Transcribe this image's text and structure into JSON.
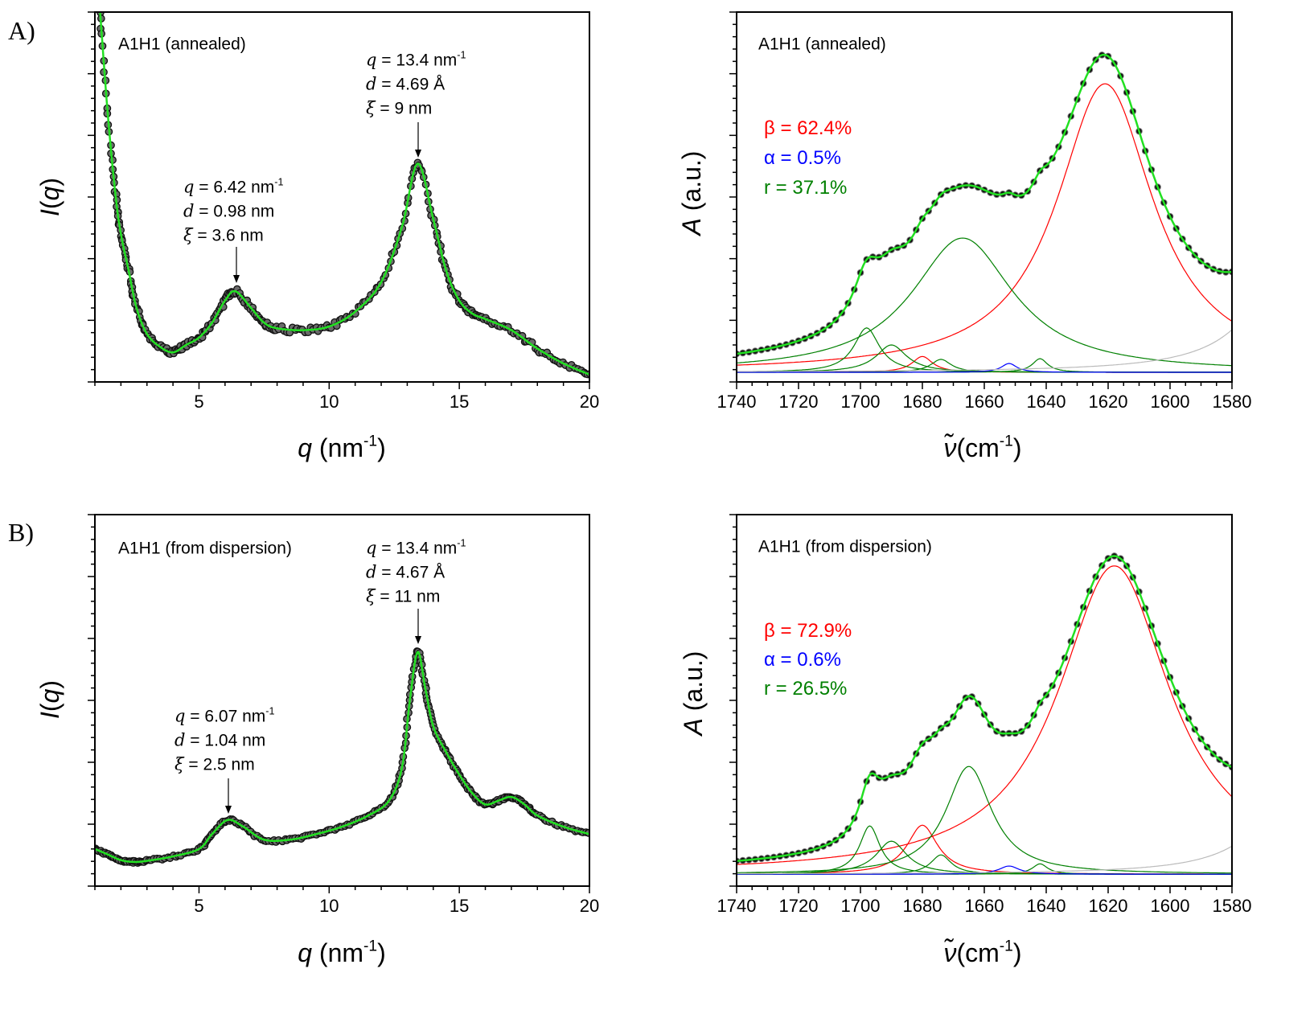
{
  "panels": [
    {
      "label": "A)"
    },
    {
      "label": "B)"
    }
  ],
  "chart_data": [
    {
      "type": "scatter",
      "label": "A1H1 (annealed)",
      "xlabel": {
        "var": "q",
        "text": " (nm",
        "sup": "-1",
        "end": ")"
      },
      "ylabel": {
        "var": "I",
        "text": "(",
        "var2": "q",
        "end": ")"
      },
      "xlim": [
        1,
        20
      ],
      "ylim": [
        0,
        1
      ],
      "xticks": [
        "5",
        "10",
        "15",
        "20"
      ],
      "xtick_values": [
        5,
        10,
        15,
        20
      ],
      "yticks_labeled": false,
      "colors": {
        "data": "#3a3a3a",
        "fit": "#22e022"
      },
      "series": {
        "x": [
          1.2,
          1.5,
          1.8,
          2.0,
          2.3,
          2.6,
          3.0,
          3.5,
          4.0,
          4.5,
          5.0,
          5.5,
          6.0,
          6.4,
          7.0,
          7.5,
          8.0,
          9.0,
          10.0,
          11.0,
          12.0,
          12.8,
          13.4,
          14.0,
          14.5,
          15.0,
          15.5,
          16.0,
          17.0,
          18.0,
          19.0,
          20.0
        ],
        "y": [
          1.0,
          0.72,
          0.5,
          0.4,
          0.3,
          0.2,
          0.13,
          0.095,
          0.08,
          0.1,
          0.12,
          0.16,
          0.22,
          0.245,
          0.2,
          0.16,
          0.145,
          0.14,
          0.15,
          0.19,
          0.27,
          0.42,
          0.59,
          0.44,
          0.3,
          0.22,
          0.185,
          0.17,
          0.14,
          0.09,
          0.05,
          0.02
        ]
      },
      "annotations": [
        {
          "at_q": 6.42,
          "lines": [
            {
              "var": "q",
              "text": " = 6.42 nm",
              "sup": "-1"
            },
            {
              "var": "d",
              "text": " = 0.98 nm",
              "sup": ""
            },
            {
              "var": "ξ",
              "text": " = 3.6 nm",
              "sup": ""
            }
          ]
        },
        {
          "at_q": 13.4,
          "lines": [
            {
              "var": "q",
              "text": " = 13.4 nm",
              "sup": "-1"
            },
            {
              "var": "d",
              "text": " = 4.69 Å",
              "sup": ""
            },
            {
              "var": "ξ",
              "text": " = 9 nm",
              "sup": ""
            }
          ]
        }
      ]
    },
    {
      "type": "line",
      "label": "A1H1 (annealed)",
      "xlabel": {
        "var": "ν̃",
        "text": "(cm",
        "sup": "-1",
        "end": ")"
      },
      "ylabel": {
        "var": "A",
        "text": " (a.u.)"
      },
      "xlim": [
        1740,
        1580
      ],
      "ylim": [
        0,
        1
      ],
      "xticks": [
        "1740",
        "1720",
        "1700",
        "1680",
        "1660",
        "1640",
        "1620",
        "1600",
        "1580"
      ],
      "xtick_values": [
        1740,
        1720,
        1700,
        1680,
        1660,
        1640,
        1620,
        1600,
        1580
      ],
      "yticks_labeled": false,
      "baseline": 0.026,
      "fractions": [
        {
          "text": "β = 62.4%",
          "color": "#ff0000"
        },
        {
          "text": "α =  0.5%",
          "color": "#0000ff"
        },
        {
          "text": "r = 37.1%",
          "color": "#008000"
        }
      ],
      "colors": {
        "data": "#111111",
        "fit": "#22e022"
      },
      "components": [
        {
          "center": 1621,
          "height": 0.78,
          "hwhm": 19,
          "color": "#ff0000"
        },
        {
          "center": 1680,
          "height": 0.043,
          "hwhm": 4,
          "color": "#ff0000"
        },
        {
          "center": 1667,
          "height": 0.363,
          "hwhm": 20,
          "color": "#008000"
        },
        {
          "center": 1698,
          "height": 0.12,
          "hwhm": 5,
          "color": "#008000"
        },
        {
          "center": 1690,
          "height": 0.074,
          "hwhm": 6,
          "color": "#008000"
        },
        {
          "center": 1674,
          "height": 0.035,
          "hwhm": 4,
          "color": "#008000"
        },
        {
          "center": 1642,
          "height": 0.037,
          "hwhm": 3,
          "color": "#008000"
        },
        {
          "center": 1652,
          "height": 0.024,
          "hwhm": 3,
          "color": "#0000ff"
        },
        {
          "center": 1560,
          "height": 0.32,
          "hwhm": 15,
          "color": "#bbbbbb"
        }
      ]
    },
    {
      "type": "scatter",
      "label": "A1H1 (from dispersion)",
      "xlabel": {
        "var": "q",
        "text": " (nm",
        "sup": "-1",
        "end": ")"
      },
      "ylabel": {
        "var": "I",
        "text": "(",
        "var2": "q",
        "end": ")"
      },
      "xlim": [
        1,
        20
      ],
      "ylim": [
        0,
        1
      ],
      "xticks": [
        "5",
        "10",
        "15",
        "20"
      ],
      "xtick_values": [
        5,
        10,
        15,
        20
      ],
      "yticks_labeled": false,
      "colors": {
        "data": "#3a3a3a",
        "fit": "#22e022"
      },
      "series": {
        "x": [
          1.0,
          1.5,
          2.0,
          2.5,
          3.0,
          4.0,
          5.0,
          5.5,
          6.1,
          6.7,
          7.5,
          8.5,
          9.5,
          10.5,
          11.5,
          12.3,
          12.8,
          13.1,
          13.4,
          13.7,
          14.0,
          14.5,
          15.0,
          15.5,
          16.0,
          16.5,
          17.0,
          17.5,
          18.0,
          19.0,
          20.0
        ],
        "y": [
          0.1,
          0.085,
          0.07,
          0.065,
          0.068,
          0.08,
          0.1,
          0.14,
          0.178,
          0.16,
          0.125,
          0.125,
          0.14,
          0.16,
          0.19,
          0.23,
          0.32,
          0.5,
          0.63,
          0.53,
          0.43,
          0.36,
          0.3,
          0.25,
          0.22,
          0.23,
          0.24,
          0.22,
          0.19,
          0.16,
          0.14
        ]
      },
      "annotations": [
        {
          "at_q": 6.07,
          "lines": [
            {
              "var": "q",
              "text": " = 6.07 nm",
              "sup": "-1"
            },
            {
              "var": "d",
              "text": " = 1.04 nm",
              "sup": ""
            },
            {
              "var": "ξ",
              "text": " = 2.5 nm",
              "sup": ""
            }
          ]
        },
        {
          "at_q": 13.4,
          "lines": [
            {
              "var": "q",
              "text": " = 13.4 nm",
              "sup": "-1"
            },
            {
              "var": "d",
              "text": " = 4.67 Å",
              "sup": ""
            },
            {
              "var": "ξ",
              "text": " = 11 nm",
              "sup": ""
            }
          ]
        }
      ]
    },
    {
      "type": "line",
      "label": "A1H1 (from dispersion)",
      "xlabel": {
        "var": "ν̃",
        "text": "(cm",
        "sup": "-1",
        "end": ")"
      },
      "ylabel": {
        "var": "A",
        "text": " (a.u.)"
      },
      "xlim": [
        1740,
        1580
      ],
      "ylim": [
        0,
        1
      ],
      "xticks": [
        "1740",
        "1720",
        "1700",
        "1680",
        "1660",
        "1640",
        "1620",
        "1600",
        "1580"
      ],
      "xtick_values": [
        1740,
        1720,
        1700,
        1680,
        1660,
        1640,
        1620,
        1600,
        1580
      ],
      "yticks_labeled": false,
      "baseline": 0.032,
      "fractions": [
        {
          "text": "β = 72.9%",
          "color": "#ff0000"
        },
        {
          "text": "α =  0.6%",
          "color": "#0000ff"
        },
        {
          "text": "r = 26.5%",
          "color": "#008000"
        }
      ],
      "colors": {
        "data": "#111111",
        "fit": "#22e022"
      },
      "components": [
        {
          "center": 1618,
          "height": 0.83,
          "hwhm": 22,
          "color": "#ff0000"
        },
        {
          "center": 1680,
          "height": 0.132,
          "hwhm": 6,
          "color": "#ff0000"
        },
        {
          "center": 1665,
          "height": 0.29,
          "hwhm": 9,
          "color": "#008000"
        },
        {
          "center": 1697,
          "height": 0.13,
          "hwhm": 4,
          "color": "#008000"
        },
        {
          "center": 1690,
          "height": 0.089,
          "hwhm": 6,
          "color": "#008000"
        },
        {
          "center": 1674,
          "height": 0.052,
          "hwhm": 4,
          "color": "#008000"
        },
        {
          "center": 1642,
          "height": 0.028,
          "hwhm": 3,
          "color": "#008000"
        },
        {
          "center": 1652,
          "height": 0.022,
          "hwhm": 4,
          "color": "#0000ff"
        },
        {
          "center": 1560,
          "height": 0.21,
          "hwhm": 15,
          "color": "#bbbbbb"
        }
      ]
    }
  ]
}
